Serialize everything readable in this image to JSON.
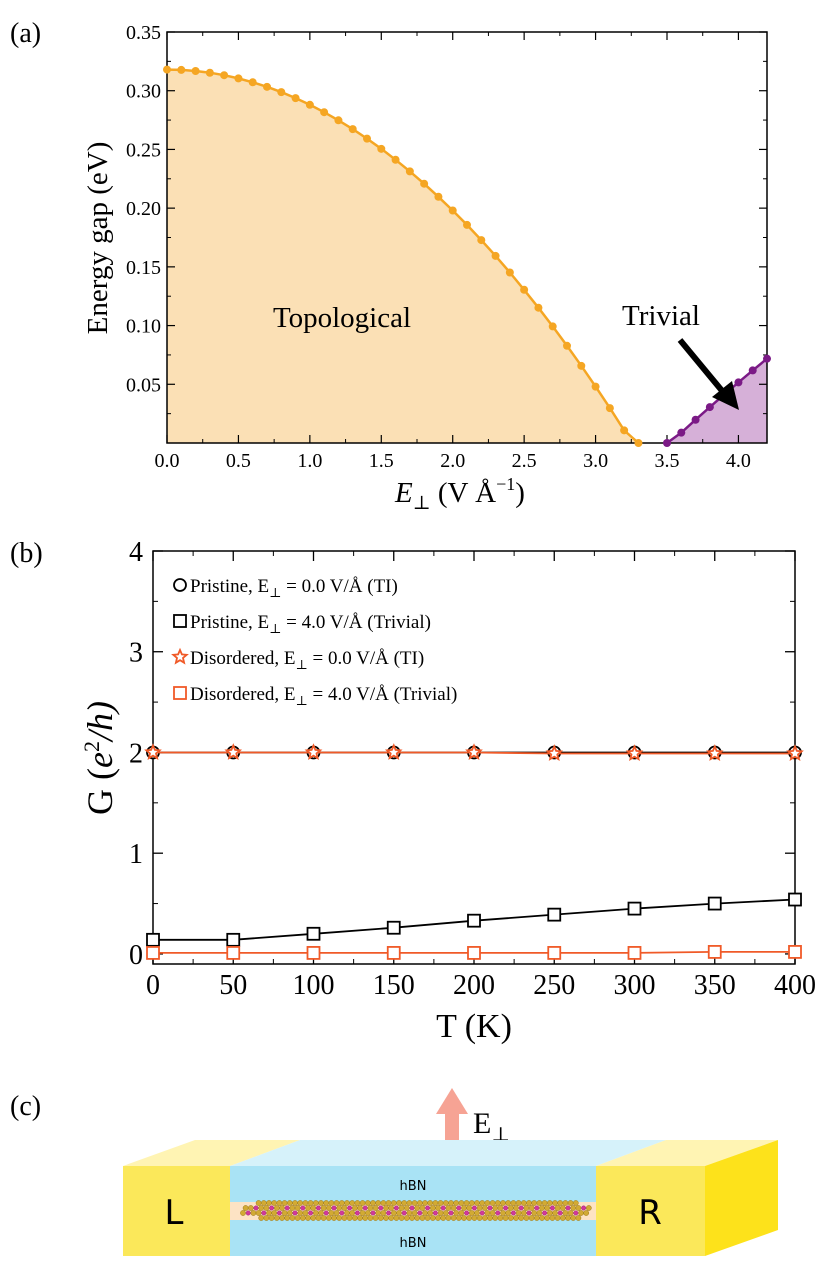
{
  "panel_labels": [
    "(a)",
    "(b)",
    "(c)"
  ],
  "chart_data": [
    {
      "type": "area",
      "panel": "(a)",
      "xlabel_main": "E",
      "xlabel_sub": "⊥",
      "xlabel_unit": " (V Å",
      "xlabel_exp": "−1",
      "xlabel_close": ")",
      "ylabel": "Energy gap (eV)",
      "xlim": [
        0.0,
        4.2
      ],
      "ylim": [
        0.0,
        0.35
      ],
      "xticks": [
        "0.0",
        "0.5",
        "1.0",
        "1.5",
        "2.0",
        "2.5",
        "3.0",
        "3.5",
        "4.0"
      ],
      "yticks": [
        "0.05",
        "0.10",
        "0.15",
        "0.20",
        "0.25",
        "0.30",
        "0.35"
      ],
      "annotations": {
        "topological": "Topological",
        "trivial": "Trivial"
      },
      "colors": {
        "topological_line": "#f5a623",
        "topological_fill": "#fbe0b5",
        "trivial_line": "#7b1a86",
        "trivial_fill": "#d6b0d8"
      },
      "series": [
        {
          "name": "Topological",
          "x_start": 0.0,
          "x_step": 0.1,
          "values": [
            0.318,
            0.3177,
            0.3168,
            0.3153,
            0.3132,
            0.3105,
            0.3072,
            0.3033,
            0.2988,
            0.2937,
            0.288,
            0.2817,
            0.2748,
            0.2673,
            0.2592,
            0.2505,
            0.2412,
            0.2313,
            0.2208,
            0.2097,
            0.198,
            0.1857,
            0.1728,
            0.1593,
            0.1452,
            0.1305,
            0.1152,
            0.0993,
            0.0828,
            0.0657,
            0.048,
            0.0297,
            0.0108,
            0.0
          ]
        },
        {
          "name": "Trivial",
          "x_start": 3.5,
          "x_step": 0.1,
          "values": [
            0.0,
            0.0088,
            0.0198,
            0.0306,
            0.0412,
            0.0516,
            0.0618,
            0.0718
          ]
        }
      ]
    },
    {
      "type": "line",
      "panel": "(b)",
      "xlabel": "T (K)",
      "ylabel_prefix": "G (",
      "ylabel_var": "e",
      "ylabel_exp": "2",
      "ylabel_suffix": "/h)",
      "xlim": [
        0,
        400
      ],
      "ylim": [
        -0.1,
        4.0
      ],
      "xticks": [
        "0",
        "50",
        "100",
        "150",
        "200",
        "250",
        "300",
        "350",
        "400"
      ],
      "yticks": [
        "0",
        "1",
        "2",
        "3",
        "4"
      ],
      "x": [
        0,
        50,
        100,
        150,
        200,
        250,
        300,
        350,
        400
      ],
      "series": [
        {
          "name": "Pristine, E",
          "sub": "⊥",
          "rest": " = 0.0 V/Å (TI)",
          "marker": "circle",
          "color": "#000000",
          "values": [
            2.0,
            2.0,
            2.0,
            2.0,
            2.0,
            2.0,
            2.0,
            2.0,
            2.0
          ]
        },
        {
          "name": "Pristine, E",
          "sub": "⊥",
          "rest": " = 4.0 V/Å (Trivial)",
          "marker": "square",
          "color": "#000000",
          "values": [
            0.14,
            0.14,
            0.2,
            0.26,
            0.33,
            0.39,
            0.45,
            0.5,
            0.54
          ]
        },
        {
          "name": "Disordered, E",
          "sub": "⊥",
          "rest": " = 0.0 V/Å (TI)",
          "marker": "star",
          "color": "#f05a28",
          "values": [
            2.0,
            2.0,
            2.0,
            2.0,
            2.0,
            1.99,
            1.99,
            1.99,
            1.99
          ]
        },
        {
          "name": "Disordered, E",
          "sub": "⊥",
          "rest": " = 4.0 V/Å (Trivial)",
          "marker": "square",
          "color": "#f05a28",
          "values": [
            0.01,
            0.01,
            0.01,
            0.01,
            0.01,
            0.01,
            0.01,
            0.02,
            0.02
          ]
        }
      ]
    }
  ],
  "schematic": {
    "field_label": "E",
    "field_sub": "⊥",
    "left_electrode": "L",
    "right_electrode": "R",
    "top_layer": "hBN",
    "bottom_layer": "hBN"
  }
}
